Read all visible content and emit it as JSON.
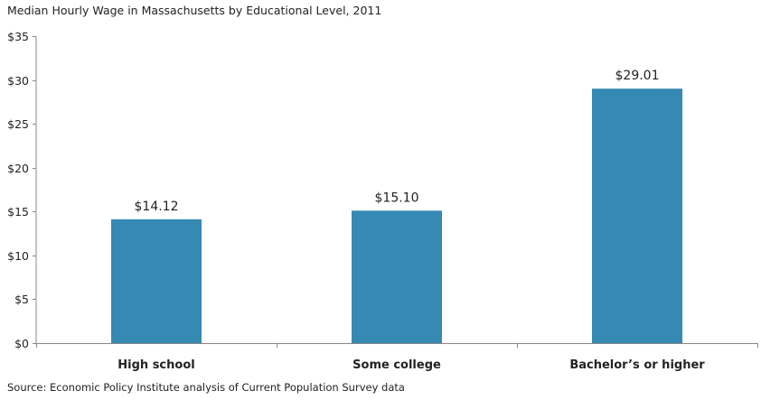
{
  "chart_data": {
    "type": "bar",
    "title": "Median Hourly Wage  in Massachusetts by Educational Level, 2011",
    "source": "Source: Economic Policy Institute analysis of Current Population Survey data",
    "categories": [
      "High school",
      "Some college",
      "Bachelor’s or higher"
    ],
    "values": [
      14.12,
      15.1,
      29.01
    ],
    "data_labels": [
      "$14.12",
      "$15.10",
      "$29.01"
    ],
    "ylim": [
      0,
      35
    ],
    "yticks": [
      0,
      5,
      10,
      15,
      20,
      25,
      30,
      35
    ],
    "ytick_labels": [
      "$0",
      "$5",
      "$10",
      "$15",
      "$20",
      "$25",
      "$30",
      "$35"
    ],
    "xlabel": "",
    "ylabel": "",
    "grid": false,
    "legend": false,
    "bar_color": "#3589b3",
    "axis_color": "#888888"
  }
}
